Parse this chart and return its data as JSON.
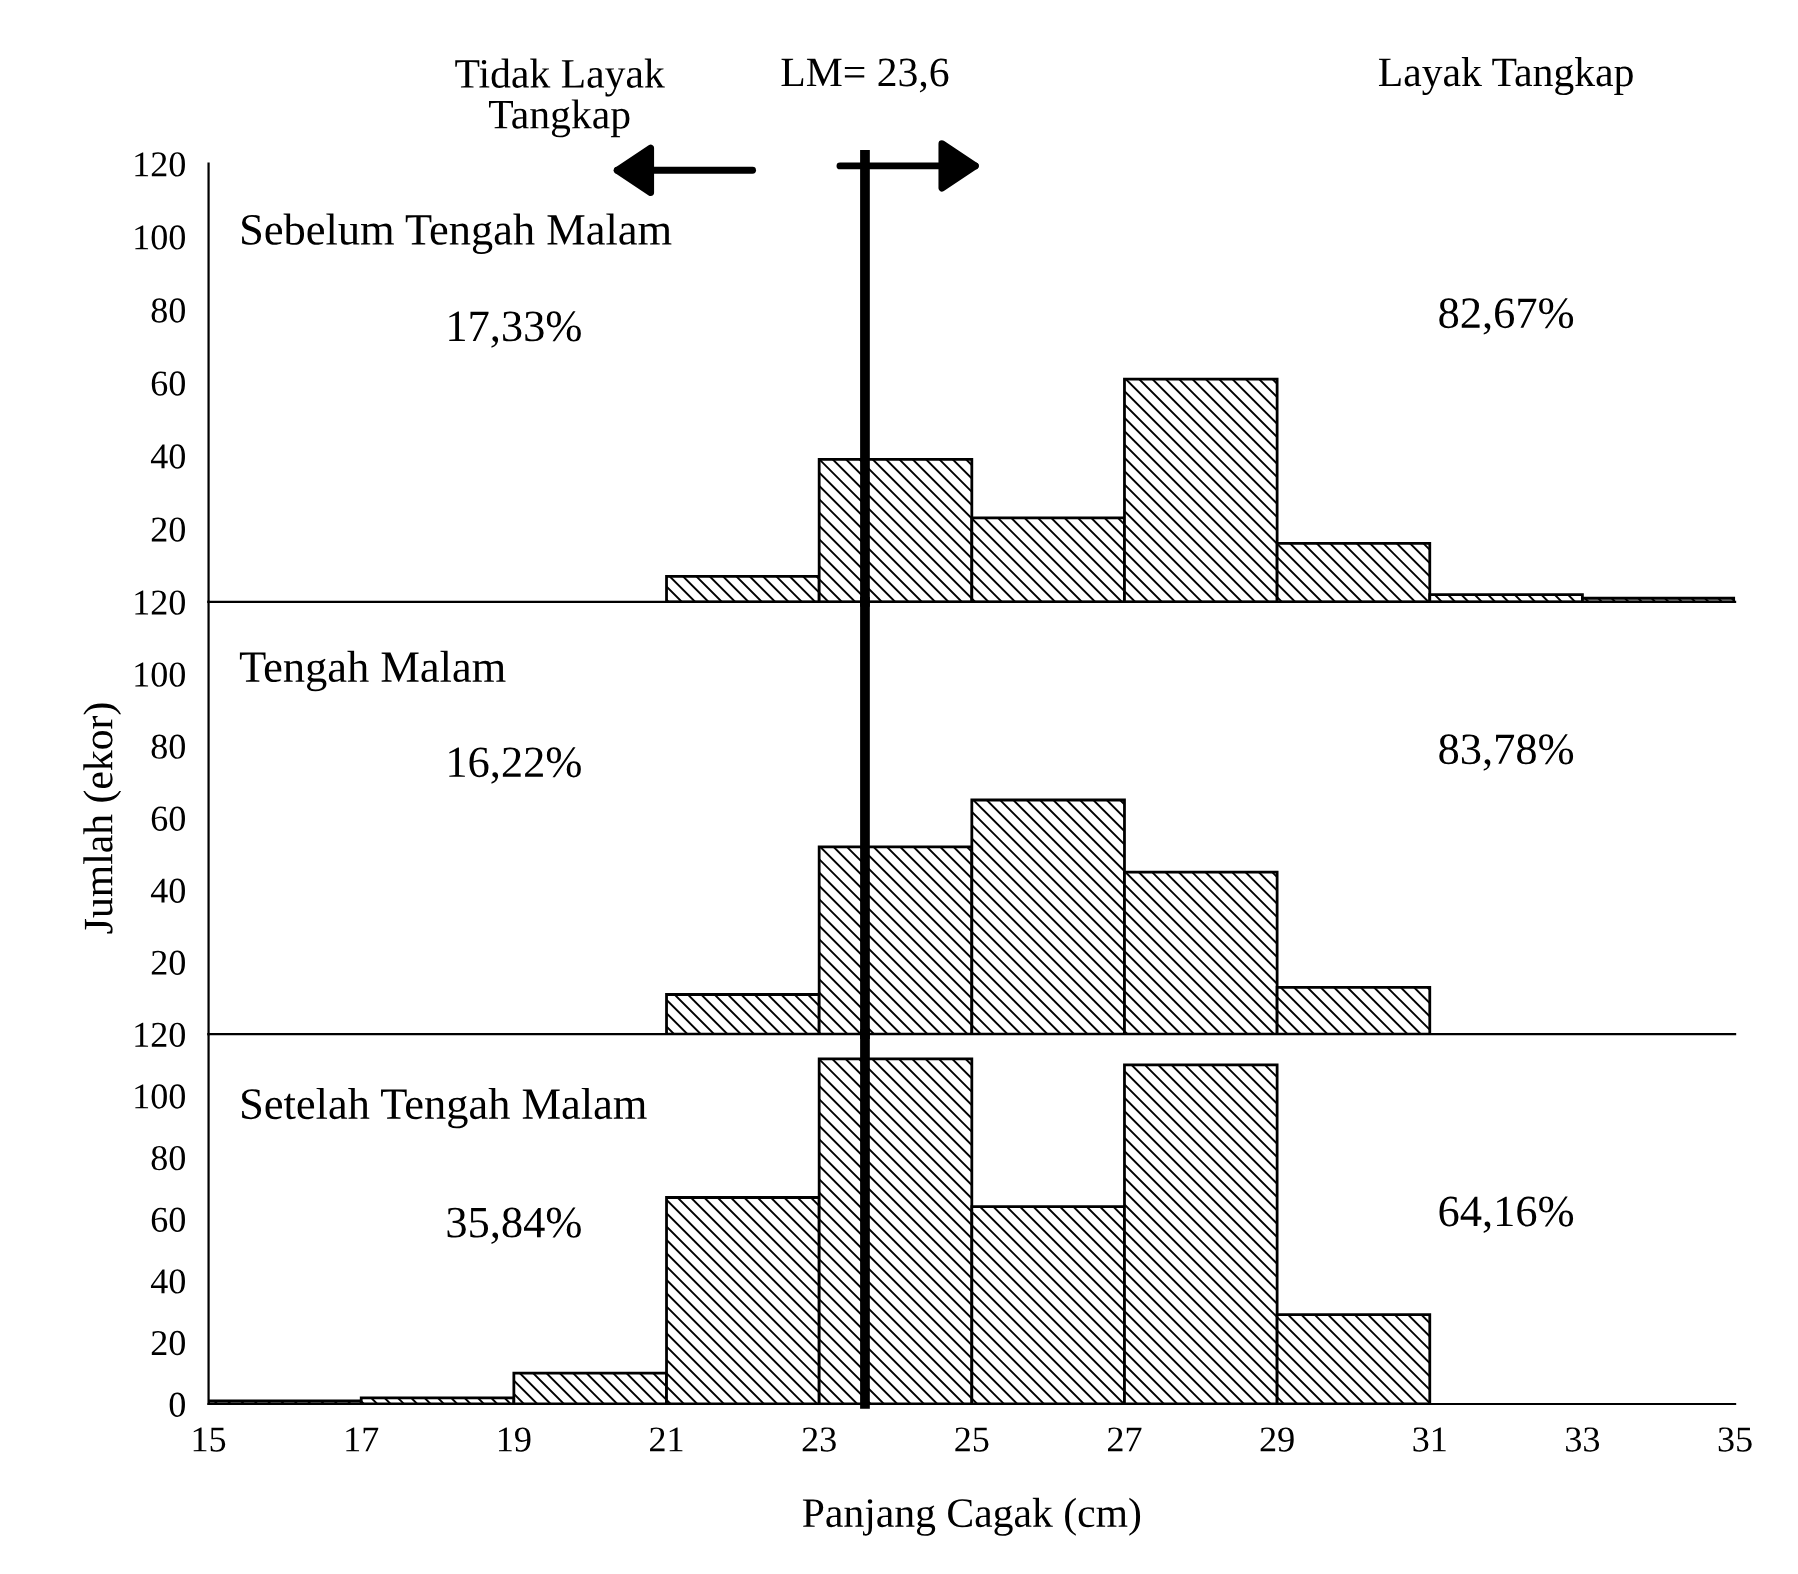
{
  "chart_data": [
    {
      "type": "histogram",
      "title": "Sebelum Tengah Malam",
      "bins": [
        21,
        23,
        25,
        27,
        29,
        31,
        33,
        35
      ],
      "values": [
        7,
        39,
        23,
        61,
        16,
        2,
        1
      ],
      "color": "#000000",
      "xlim": [
        15,
        35
      ],
      "ylim": [
        0,
        120
      ],
      "yticks": [
        20,
        40,
        60,
        80,
        100,
        120
      ],
      "tick_labels": "y",
      "grid": false,
      "ref_lines": [
        {
          "axis": "x",
          "value": 23.6,
          "label": "LM= 23,6",
          "color": "#000000"
        }
      ],
      "annotations": [
        "Tidak Layak\nTangkap",
        "Layak Tangkap",
        "17,33%",
        "82,67%"
      ]
    },
    {
      "type": "histogram",
      "title": "Tengah Malam",
      "ylabel": "Jumlah (ekor)",
      "bins": [
        21,
        23,
        25,
        27,
        29,
        31
      ],
      "values": [
        11,
        52,
        65,
        45,
        13
      ],
      "color": "#000000",
      "xlim": [
        15,
        35
      ],
      "ylim": [
        0,
        120
      ],
      "yticks": [
        20,
        40,
        60,
        80,
        100,
        120
      ],
      "tick_labels": "y",
      "grid": false,
      "ref_lines": [
        {
          "axis": "x",
          "value": 23.6,
          "color": "#000000"
        }
      ],
      "annotations": [
        "16,22%",
        "83,78%"
      ]
    },
    {
      "type": "histogram",
      "title": "Setelah Tengah Malam",
      "xlabel": "Panjang Cagak (cm)",
      "bins": [
        15,
        17,
        19,
        21,
        23,
        25,
        27,
        29,
        31
      ],
      "values": [
        1,
        2,
        10,
        67,
        112,
        64,
        110,
        29
      ],
      "color": "#000000",
      "xlim": [
        15,
        35
      ],
      "ylim": [
        0,
        120
      ],
      "xticks": [
        15,
        17,
        19,
        21,
        23,
        25,
        27,
        29,
        31,
        33,
        35
      ],
      "yticks": [
        0,
        20,
        40,
        60,
        80,
        100,
        120
      ],
      "grid": false,
      "ref_lines": [
        {
          "axis": "x",
          "value": 23.6,
          "color": "#000000"
        }
      ],
      "annotations": [
        "35,84%",
        "64,16%"
      ]
    }
  ]
}
